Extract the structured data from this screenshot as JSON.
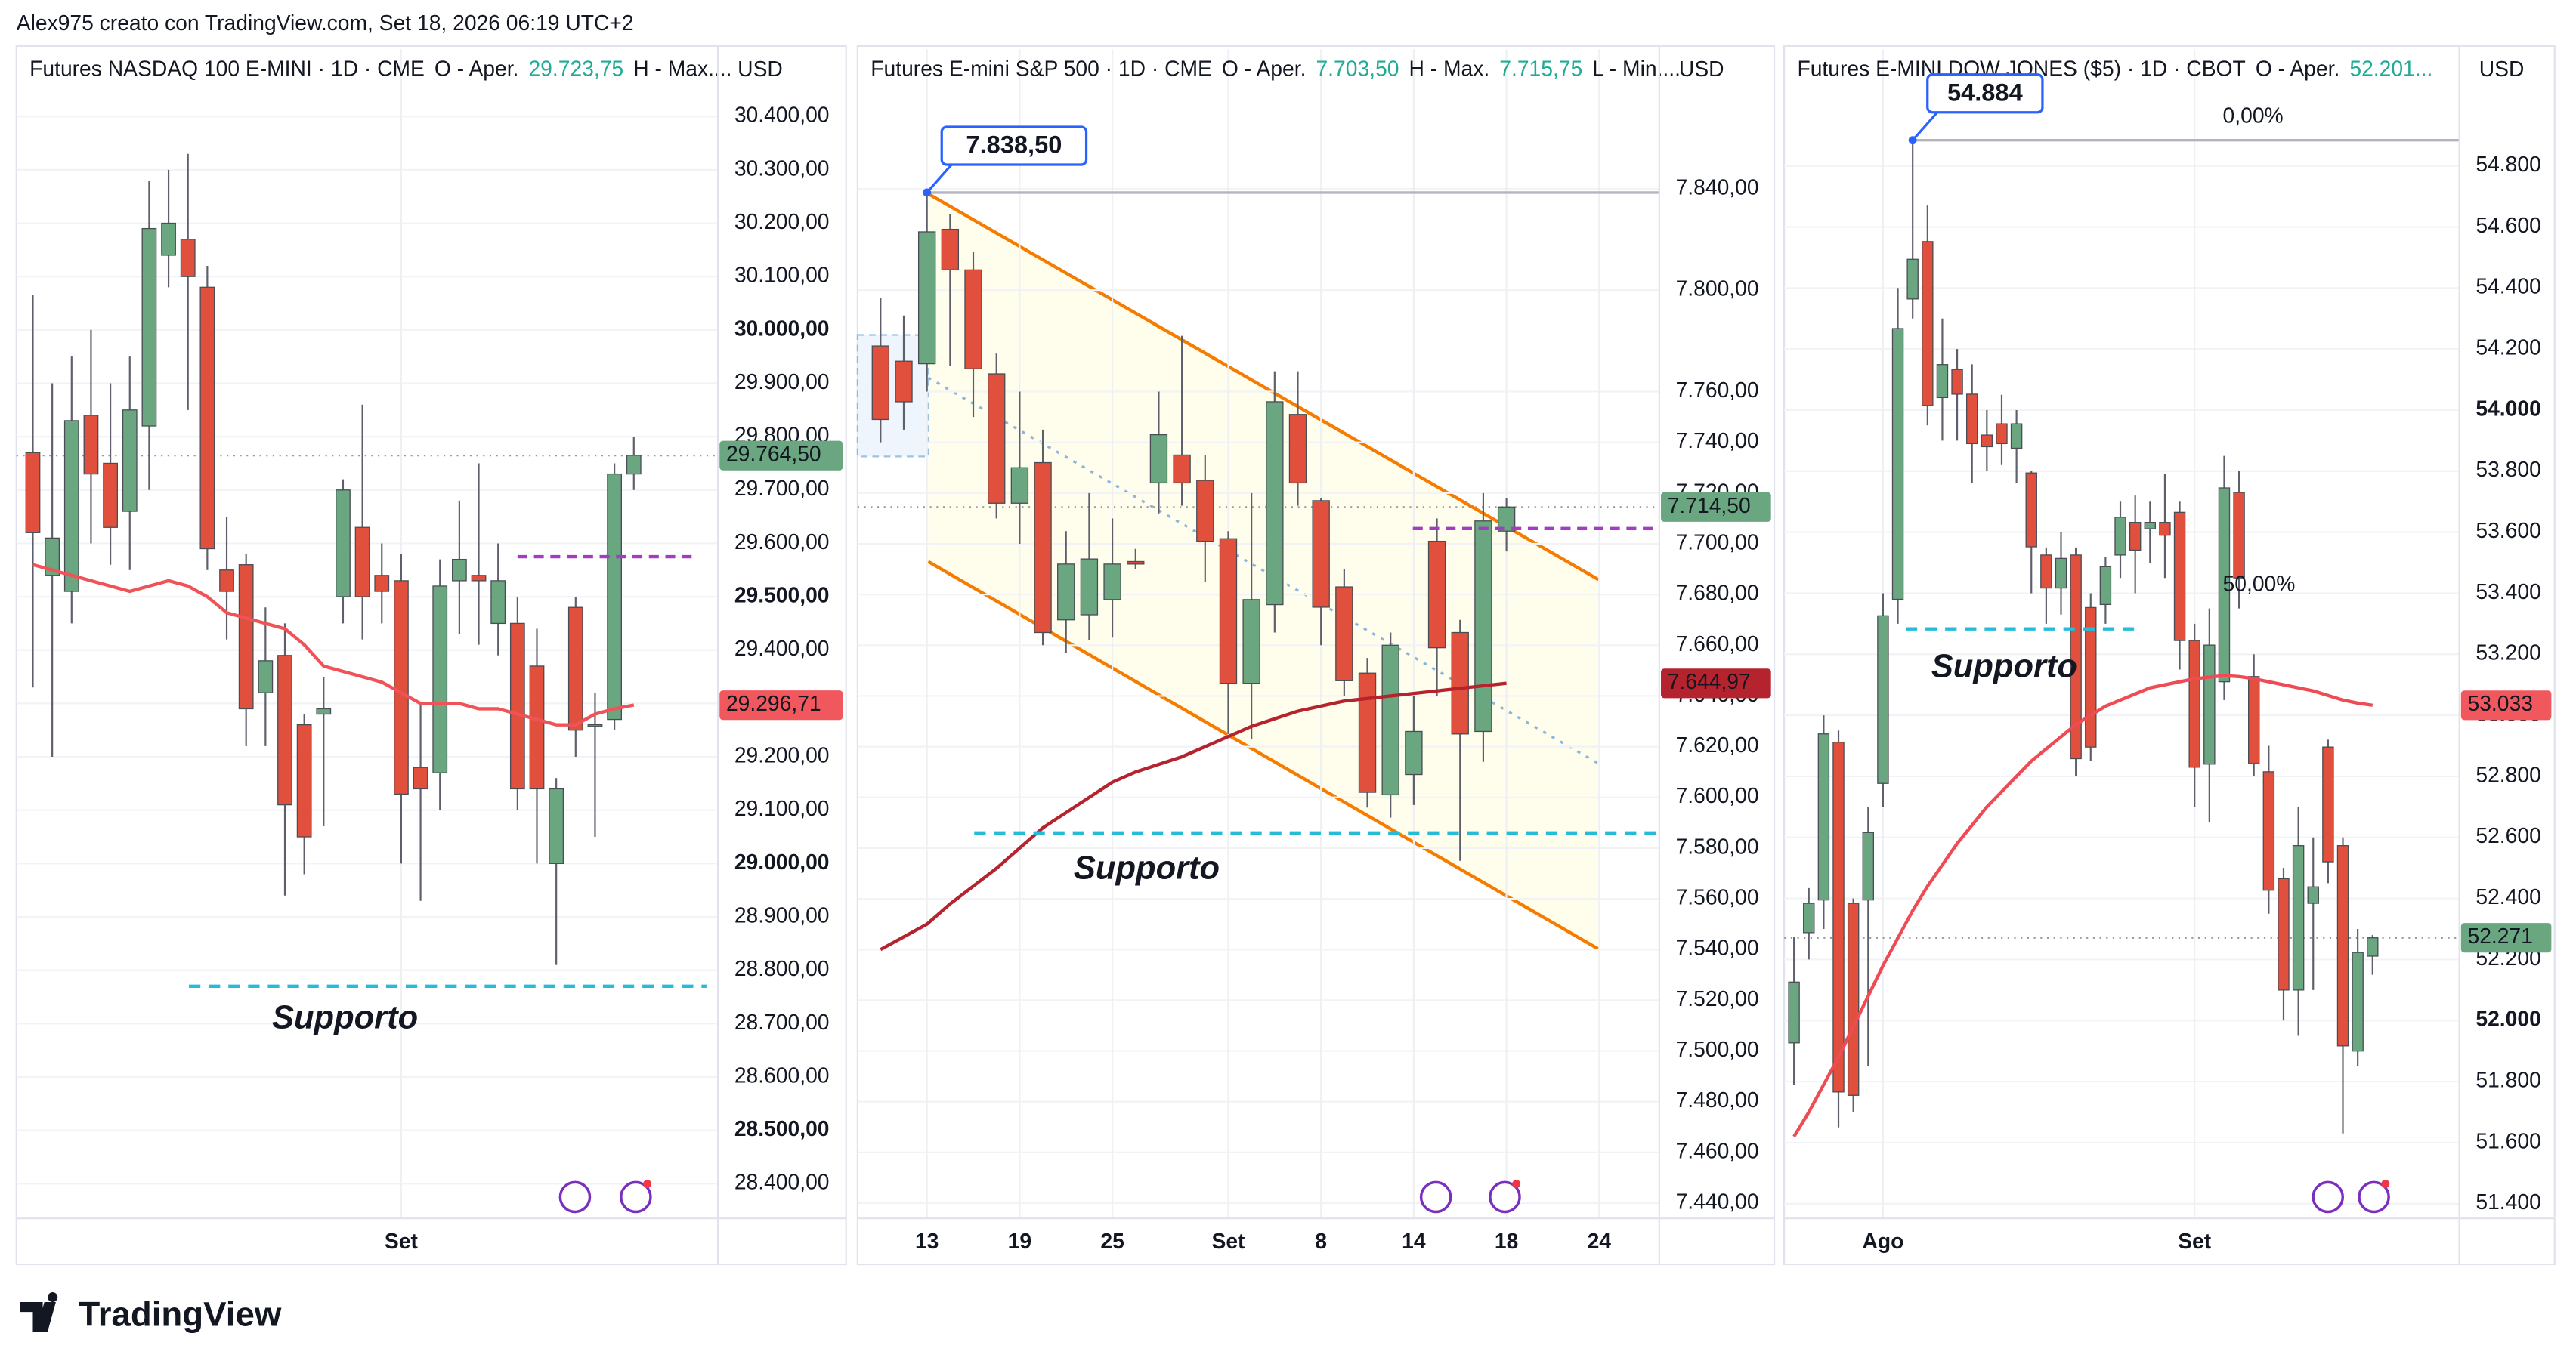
{
  "credit": "Alex975 creato con TradingView.com, Set 18, 2026 06:19 UTC+2",
  "brand": "TradingView",
  "chart_data": [
    {
      "type": "candlestick",
      "header": [
        {
          "text": "Futures NASDAQ 100 E-MINI · 1D · CME"
        },
        {
          "text": "O - Aper."
        },
        {
          "text": "29.723,75",
          "color": "#22ab94"
        },
        {
          "text": "H - Max...."
        }
      ],
      "currency": "USD",
      "x": [
        null,
        null,
        null,
        null,
        null,
        null,
        null,
        null,
        null,
        null,
        null,
        null,
        null,
        null,
        null,
        null,
        null,
        null,
        null,
        "Set",
        null,
        null,
        null,
        null,
        null,
        null,
        null,
        null,
        null,
        null,
        null,
        null
      ],
      "open": [
        29770,
        29540,
        29510,
        29840,
        29750,
        29660,
        29820,
        30140,
        30170,
        30080,
        29550,
        29560,
        29320,
        29390,
        29260,
        29280,
        29500,
        29630,
        29540,
        29530,
        29180,
        29170,
        29530,
        29540,
        29450,
        29450,
        29370,
        29000,
        29480,
        29260,
        29270,
        29730
      ],
      "high": [
        30065,
        29900,
        29950,
        30000,
        29900,
        29950,
        30280,
        30300,
        30330,
        30120,
        29650,
        29580,
        29480,
        29450,
        29280,
        29350,
        29720,
        29860,
        29600,
        29580,
        29300,
        29570,
        29680,
        29750,
        29600,
        29500,
        29440,
        29160,
        29500,
        29320,
        29750,
        29800
      ],
      "low": [
        29330,
        29200,
        29450,
        29600,
        29560,
        29550,
        29700,
        30080,
        29850,
        29550,
        29420,
        29220,
        29220,
        28940,
        28980,
        29070,
        29450,
        29420,
        29450,
        29000,
        28930,
        29100,
        29430,
        29410,
        29390,
        29100,
        29000,
        28810,
        29200,
        29050,
        29250,
        29700
      ],
      "close": [
        29620,
        29610,
        29830,
        29730,
        29630,
        29850,
        30190,
        30200,
        30100,
        29590,
        29510,
        29290,
        29380,
        29110,
        29050,
        29290,
        29700,
        29500,
        29510,
        29130,
        29140,
        29520,
        29570,
        29530,
        29530,
        29140,
        29140,
        29140,
        29250,
        29260,
        29730,
        29765
      ],
      "up_color": "#6aa680",
      "down_color": "#e0503d",
      "ma": {
        "color": "#ef5358",
        "values": [
          29560,
          29550,
          29540,
          29530,
          29520,
          29510,
          29520,
          29530,
          29520,
          29500,
          29470,
          29460,
          29450,
          29440,
          29410,
          29370,
          29360,
          29350,
          29340,
          29320,
          29300,
          29300,
          29300,
          29290,
          29290,
          29280,
          29270,
          29260,
          29260,
          29280,
          29290,
          29297
        ]
      },
      "ylim": [
        28335,
        30526
      ],
      "yticks": [
        {
          "value": 30400,
          "label": "30.400,00"
        },
        {
          "value": 30300,
          "label": "30.300,00"
        },
        {
          "value": 30200,
          "label": "30.200,00"
        },
        {
          "value": 30100,
          "label": "30.100,00"
        },
        {
          "value": 30000,
          "label": "30.000,00"
        },
        {
          "value": 29900,
          "label": "29.900,00"
        },
        {
          "value": 29800,
          "label": "29.800,00"
        },
        {
          "value": 29700,
          "label": "29.700,00"
        },
        {
          "value": 29600,
          "label": "29.600,00"
        },
        {
          "value": 29500,
          "label": "29.500,00"
        },
        {
          "value": 29400,
          "label": "29.400,00"
        },
        {
          "value": 29300,
          "label": "29.300,00"
        },
        {
          "value": 29200,
          "label": "29.200,00"
        },
        {
          "value": 29100,
          "label": "29.100,00"
        },
        {
          "value": 29000,
          "label": "29.000,00"
        },
        {
          "value": 28900,
          "label": "28.900,00"
        },
        {
          "value": 28800,
          "label": "28.800,00"
        },
        {
          "value": 28700,
          "label": "28.700,00"
        },
        {
          "value": 28600,
          "label": "28.600,00"
        },
        {
          "value": 28500,
          "label": "28.500,00"
        },
        {
          "value": 28400,
          "label": "28.400,00"
        }
      ],
      "last_price": {
        "value": 29764.5,
        "label": "29.764,50",
        "color": "#6aa680"
      },
      "ma_price": {
        "value": 29296.71,
        "label": "29.296,71",
        "color": "#f0585e"
      },
      "support": {
        "value": 28770,
        "label": "Supporto",
        "color": "#26bcd7"
      },
      "level": {
        "value": 29575,
        "color": "#a23cc0"
      }
    },
    {
      "type": "candlestick",
      "header": [
        {
          "text": "Futures E-mini S&P 500 · 1D · CME"
        },
        {
          "text": "O - Aper."
        },
        {
          "text": "7.703,50",
          "color": "#22ab94"
        },
        {
          "text": "H - Max."
        },
        {
          "text": "7.715,75",
          "color": "#22ab94"
        },
        {
          "text": "L - Min...."
        }
      ],
      "currency": "USD",
      "x": [
        null,
        null,
        "13",
        null,
        null,
        null,
        "19",
        null,
        null,
        null,
        "25",
        null,
        null,
        null,
        null,
        "Set",
        null,
        null,
        null,
        "8",
        null,
        null,
        null,
        "14",
        null,
        null,
        null,
        "18",
        null,
        null,
        null,
        "24"
      ],
      "open": [
        7778,
        7772,
        7771,
        7824,
        7808,
        7767,
        7716,
        7732,
        7670,
        7672,
        7678,
        7693,
        7724,
        7735,
        7725,
        7702,
        7645,
        7676,
        7751,
        7717,
        7683,
        7649,
        7601,
        7609,
        7701,
        7665,
        7626,
        7705,
        null,
        null,
        null,
        null
      ],
      "high": [
        7797,
        7790,
        7838.5,
        7830,
        7815,
        7775,
        7760,
        7745,
        7705,
        7720,
        7710,
        7698,
        7760,
        7782,
        7735,
        7705,
        7720,
        7768,
        7768,
        7718,
        7690,
        7655,
        7665,
        7640,
        7710,
        7670,
        7720,
        7718,
        null,
        null,
        null,
        null
      ],
      "low": [
        7740,
        7745,
        7760,
        7770,
        7750,
        7710,
        7700,
        7660,
        7657,
        7662,
        7663,
        7690,
        7712,
        7715,
        7685,
        7625,
        7623,
        7665,
        7715,
        7660,
        7640,
        7596,
        7592,
        7597,
        7640,
        7575,
        7614,
        7697,
        null,
        null,
        null,
        null
      ],
      "close": [
        7749,
        7756,
        7823,
        7808,
        7769,
        7716,
        7730,
        7665,
        7692,
        7694,
        7692,
        7692,
        7743,
        7724,
        7701,
        7645,
        7678,
        7756,
        7724,
        7675,
        7646,
        7602,
        7660,
        7626,
        7659,
        7625,
        7709,
        7714.5,
        null,
        null,
        null,
        null
      ],
      "up_color": "#6aa680",
      "down_color": "#e0503d",
      "ma": {
        "color": "#b5232f",
        "values": [
          7540,
          7545,
          7550,
          7558,
          7565,
          7572,
          7580,
          7588,
          7594,
          7600,
          7606,
          7610,
          7613,
          7616,
          7620,
          7624,
          7628,
          7631,
          7634,
          7636,
          7638,
          7639,
          7640,
          7641,
          7642,
          7643,
          7644,
          7645,
          null,
          null,
          null,
          null
        ]
      },
      "ylim": [
        7434,
        7895
      ],
      "yticks": [
        {
          "value": 7840,
          "label": "7.840,00"
        },
        {
          "value": 7800,
          "label": "7.800,00"
        },
        {
          "value": 7760,
          "label": "7.760,00"
        },
        {
          "value": 7740,
          "label": "7.740,00"
        },
        {
          "value": 7720,
          "label": "7.720,00"
        },
        {
          "value": 7700,
          "label": "7.700,00"
        },
        {
          "value": 7680,
          "label": "7.680,00"
        },
        {
          "value": 7660,
          "label": "7.660,00"
        },
        {
          "value": 7640,
          "label": "7.640,00"
        },
        {
          "value": 7620,
          "label": "7.620,00"
        },
        {
          "value": 7600,
          "label": "7.600,00"
        },
        {
          "value": 7580,
          "label": "7.580,00"
        },
        {
          "value": 7560,
          "label": "7.560,00"
        },
        {
          "value": 7540,
          "label": "7.540,00"
        },
        {
          "value": 7520,
          "label": "7.520,00"
        },
        {
          "value": 7500,
          "label": "7.500,00"
        },
        {
          "value": 7480,
          "label": "7.480,00"
        },
        {
          "value": 7460,
          "label": "7.460,00"
        },
        {
          "value": 7440,
          "label": "7.440,00"
        }
      ],
      "last_price": {
        "value": 7714.5,
        "label": "7.714,50",
        "color": "#6aa680"
      },
      "ma_price": {
        "value": 7644.97,
        "label": "7.644,97",
        "color": "#b5232f"
      },
      "support": {
        "value": 7586,
        "label": "Supporto",
        "color": "#26bcd7"
      },
      "level": {
        "value": 7706,
        "color": "#a23cc0"
      },
      "callout": {
        "value": 7838.5,
        "label": "7.838,50"
      }
    },
    {
      "type": "candlestick",
      "header": [
        {
          "text": "Futures E-MINI DOW JONES ($5) · 1D · CBOT"
        },
        {
          "text": "O - Aper."
        },
        {
          "text": "52.201...",
          "color": "#22ab94"
        }
      ],
      "currency": "USD",
      "x": [
        null,
        null,
        null,
        null,
        null,
        null,
        "Ago",
        null,
        null,
        null,
        null,
        null,
        null,
        null,
        null,
        null,
        null,
        null,
        null,
        null,
        null,
        null,
        null,
        null,
        null,
        null,
        null,
        "Set",
        null,
        null,
        null,
        null,
        null,
        null,
        null,
        null,
        null,
        null,
        null,
        null
      ],
      "open": [
        51927,
        52288,
        52395,
        52912,
        52384,
        52395,
        52777,
        53380,
        54364,
        54552,
        54041,
        54133,
        54052,
        53918,
        53955,
        53875,
        53794,
        53525,
        53417,
        53525,
        53353,
        53363,
        53525,
        53632,
        53611,
        53632,
        53665,
        53245,
        52840,
        53110,
        53730,
        53127,
        52815,
        52465,
        52100,
        52384,
        52896,
        52573,
        51900,
        52211
      ],
      "high": [
        52273,
        52434,
        53000,
        52950,
        52400,
        52700,
        53400,
        54400,
        54884,
        54670,
        54300,
        54200,
        54150,
        54000,
        54050,
        54000,
        53800,
        53550,
        53600,
        53550,
        53400,
        53520,
        53700,
        53720,
        53700,
        53790,
        53700,
        53300,
        53350,
        53850,
        53800,
        53200,
        52900,
        52500,
        52700,
        52600,
        52920,
        52600,
        52300,
        52280
      ],
      "low": [
        51788,
        52200,
        52300,
        51650,
        51700,
        51850,
        52700,
        53300,
        54300,
        53950,
        53900,
        53900,
        53760,
        53800,
        53820,
        53760,
        53400,
        53300,
        53330,
        52800,
        52850,
        53300,
        53450,
        53400,
        53500,
        53450,
        53150,
        52700,
        52650,
        53050,
        53350,
        52800,
        52350,
        52000,
        51950,
        52100,
        52450,
        51630,
        51850,
        52150
      ],
      "close": [
        52126,
        52384,
        52939,
        51766,
        51755,
        52616,
        53326,
        54267,
        54494,
        54015,
        54149,
        54052,
        53890,
        53880,
        53890,
        53955,
        53552,
        53417,
        53514,
        52858,
        52896,
        53487,
        53649,
        53541,
        53632,
        53590,
        53245,
        52830,
        53230,
        53745,
        53450,
        52842,
        52427,
        52100,
        52573,
        52438,
        52520,
        51917,
        52223,
        52271
      ],
      "up_color": "#6aa680",
      "down_color": "#e0503d",
      "ma": {
        "color": "#ef4b55",
        "values": [
          51620,
          51700,
          51790,
          51880,
          51980,
          52080,
          52180,
          52270,
          52360,
          52440,
          52510,
          52580,
          52640,
          52700,
          52750,
          52800,
          52850,
          52890,
          52930,
          52970,
          53000,
          53030,
          53050,
          53070,
          53090,
          53100,
          53110,
          53120,
          53125,
          53130,
          53127,
          53120,
          53110,
          53100,
          53090,
          53080,
          53065,
          53050,
          53040,
          53033
        ]
      },
      "ylim": [
        51352,
        55182
      ],
      "yticks": [
        {
          "value": 54800,
          "label": "54.800"
        },
        {
          "value": 54600,
          "label": "54.600"
        },
        {
          "value": 54400,
          "label": "54.400"
        },
        {
          "value": 54200,
          "label": "54.200"
        },
        {
          "value": 54000,
          "label": "54.000"
        },
        {
          "value": 53800,
          "label": "53.800"
        },
        {
          "value": 53600,
          "label": "53.600"
        },
        {
          "value": 53400,
          "label": "53.400"
        },
        {
          "value": 53200,
          "label": "53.200"
        },
        {
          "value": 53000,
          "label": "53.000"
        },
        {
          "value": 52800,
          "label": "52.800"
        },
        {
          "value": 52600,
          "label": "52.600"
        },
        {
          "value": 52400,
          "label": "52.400"
        },
        {
          "value": 52200,
          "label": "52.200"
        },
        {
          "value": 52000,
          "label": "52.000"
        },
        {
          "value": 51800,
          "label": "51.800"
        },
        {
          "value": 51600,
          "label": "51.600"
        },
        {
          "value": 51400,
          "label": "51.400"
        }
      ],
      "last_price": {
        "value": 52271,
        "label": "52.271",
        "color": "#6aa680"
      },
      "ma_price": {
        "value": 53033,
        "label": "53.033",
        "color": "#f0585e"
      },
      "support": {
        "value": 53283,
        "label": "Supporto",
        "color": "#26bcd7"
      },
      "callout": {
        "value": 54884,
        "label": "54.884"
      },
      "fib_levels": [
        {
          "ratio": 0,
          "label": "0,00%",
          "price": 54884
        },
        {
          "ratio": 50,
          "label": "50,00%",
          "price": 53350
        }
      ]
    }
  ]
}
